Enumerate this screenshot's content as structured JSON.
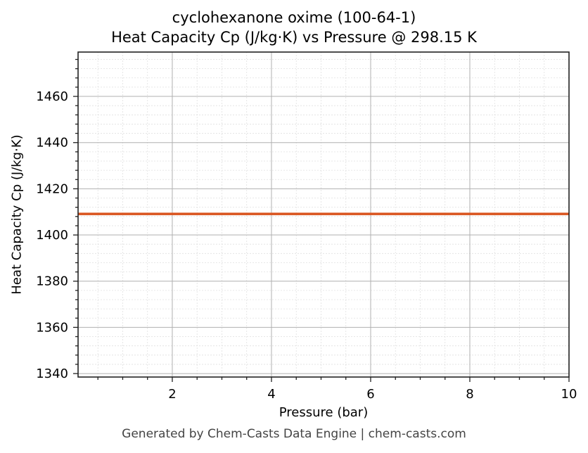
{
  "chart_data": {
    "type": "line",
    "title": "cyclohexanone oxime (100-64-1)",
    "subtitle": "Heat Capacity Cp (J/kg·K) vs Pressure @ 298.15 K",
    "xlabel": "Pressure (bar)",
    "ylabel": "Heat Capacity Cp (J/kg·K)",
    "xlim": [
      0.1,
      10
    ],
    "ylim": [
      1338.5,
      1479.2
    ],
    "x_ticks": [
      2,
      4,
      6,
      8,
      10
    ],
    "y_ticks": [
      1340,
      1360,
      1380,
      1400,
      1420,
      1440,
      1460
    ],
    "grid": true,
    "series": [
      {
        "name": "Cp",
        "color": "#d9541e",
        "x": [
          0.1,
          10
        ],
        "values": [
          1409.1,
          1409.1
        ]
      }
    ],
    "footer": "Generated by Chem-Casts Data Engine | chem-casts.com"
  }
}
